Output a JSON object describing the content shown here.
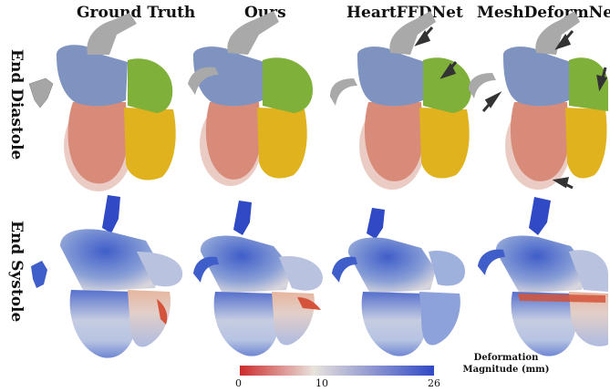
{
  "columns": [
    "Ground Truth",
    "Ours",
    "HeartFFDNet",
    "MeshDeformNet"
  ],
  "rows": [
    "End Diastole",
    "End Systole"
  ],
  "colorbar": {
    "title_line1": "Deformation",
    "title_line2": "Magnitude (mm)",
    "ticks": [
      "0",
      "10",
      "26"
    ],
    "colors": [
      "#cc2b2b",
      "#e9e2dc",
      "#3049c5"
    ]
  },
  "chamber_colors": {
    "aorta": "#a9a9a9",
    "left_atrium": "#7f93c0",
    "right_atrium": "#7fb03a",
    "left_ventricle": "#d98b7a",
    "right_ventricle": "#e0b21d",
    "myocardium": "#e8c3bb"
  }
}
